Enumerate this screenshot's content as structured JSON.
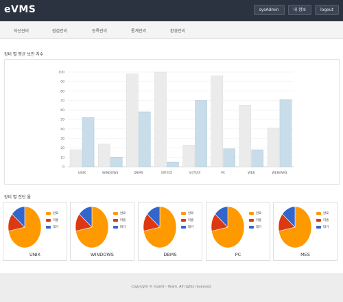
{
  "header": {
    "logo": "eVMS",
    "buttons": [
      {
        "label": "sysAdmin"
      },
      {
        "label": "내 정보"
      },
      {
        "label": "logout"
      }
    ]
  },
  "nav": {
    "items": [
      {
        "label": "자산관리"
      },
      {
        "label": "점검관리"
      },
      {
        "label": "등록관리"
      },
      {
        "label": "통계관리"
      },
      {
        "label": "환경관리"
      }
    ]
  },
  "bar_section": {
    "title": "장비 별 평균 보안 지수"
  },
  "pie_section": {
    "title": "장비 별 진단 율"
  },
  "colors": {
    "bar_gray": "#ebebeb",
    "bar_blue": "#c8dde9",
    "pie_orange": "#ff9900",
    "pie_red": "#dc3912",
    "pie_blue": "#3366cc"
  },
  "chart_data": [
    {
      "type": "bar",
      "categories": [
        "UNIX",
        "WINDOWS",
        "DBMS",
        "네트워크",
        "보안장비",
        "PC",
        "WEB",
        "WEB/WAS"
      ],
      "series": [
        {
          "values": [
            18,
            24,
            98,
            100,
            23,
            96,
            65,
            41
          ]
        },
        {
          "values": [
            52,
            10,
            58,
            5,
            70,
            19,
            18,
            71
          ]
        }
      ],
      "ylim": [
        0,
        100
      ],
      "yticks": [
        0,
        10,
        20,
        30,
        40,
        50,
        60,
        70,
        80,
        90,
        100
      ],
      "grid": true
    },
    {
      "type": "pie",
      "charts": [
        {
          "label": "UNIX",
          "values": [
            72,
            14,
            14
          ]
        },
        {
          "label": "WINDOWS",
          "values": [
            72,
            14,
            14
          ]
        },
        {
          "label": "DBMS",
          "values": [
            72,
            14,
            14
          ]
        },
        {
          "label": "PC",
          "values": [
            72,
            14,
            14
          ]
        },
        {
          "label": "MES",
          "values": [
            72,
            14,
            14
          ]
        }
      ],
      "legend": [
        "완료",
        "미흡",
        "대기"
      ]
    }
  ],
  "footer": {
    "text": "Copyright © Inzent - Team. All rights reserved."
  }
}
